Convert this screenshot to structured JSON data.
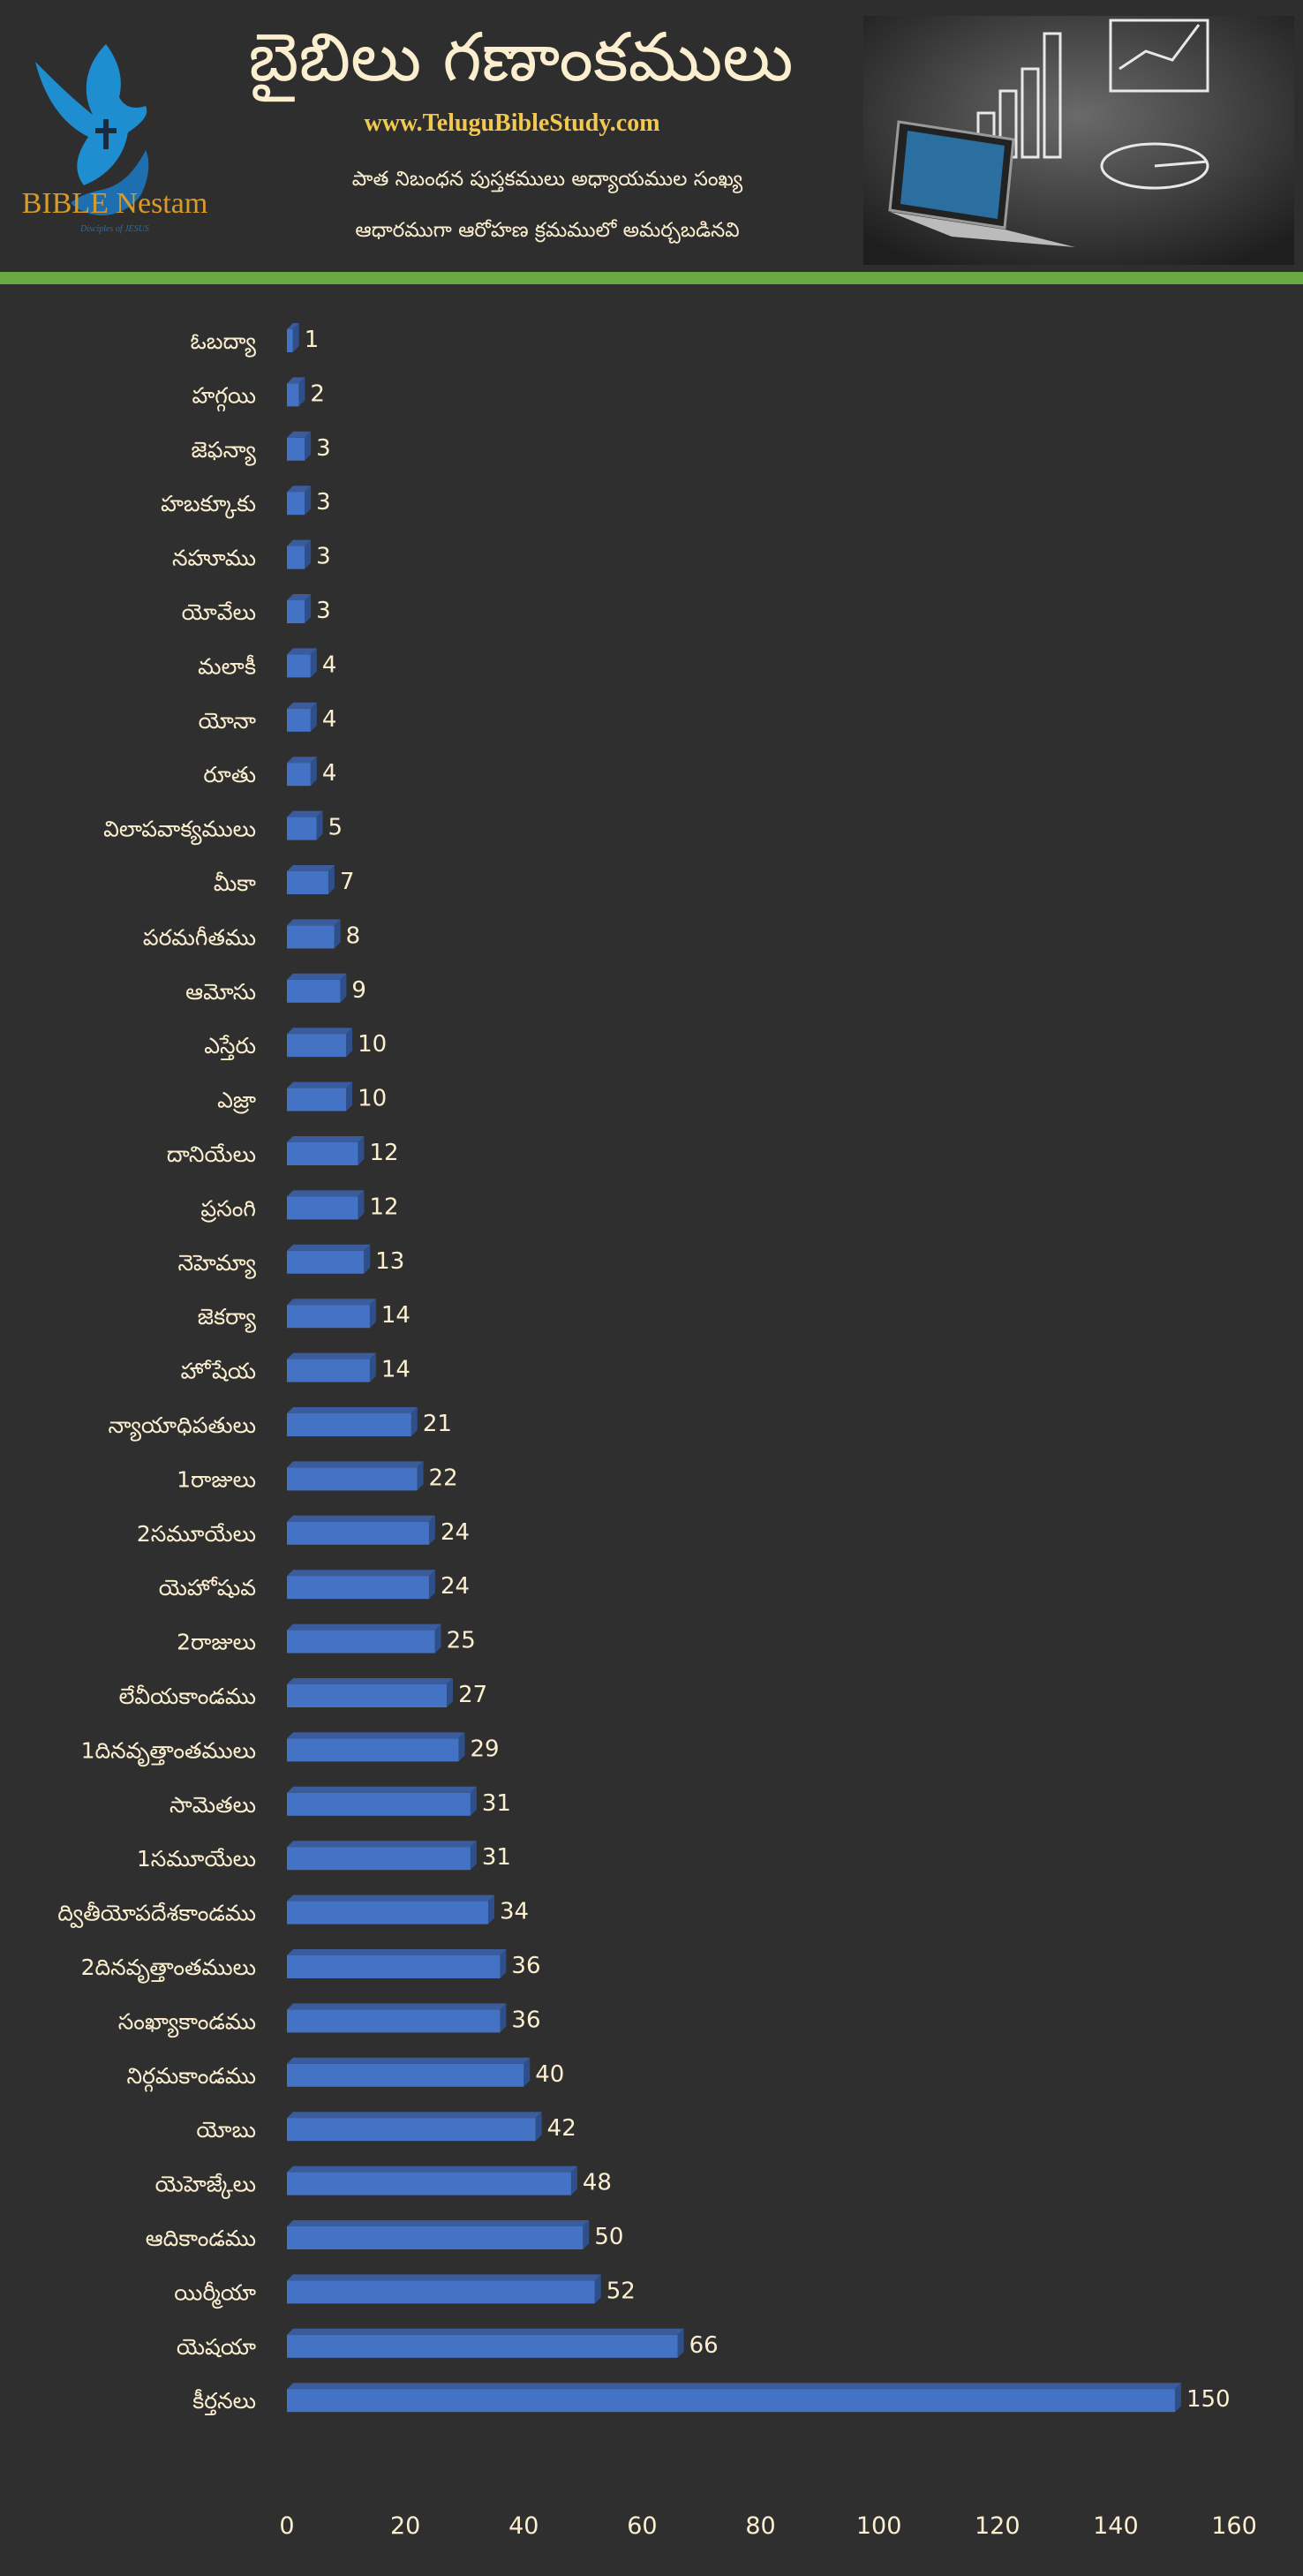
{
  "header": {
    "title": "బైబిలు గణాంకములు",
    "website": "www.TeluguBibleStudy.com",
    "subtitle_line1": "పాత నిబంధన పుస్తకములు అధ్యాయముల సంఖ్య",
    "subtitle_line2": "ఆధారముగా ఆరోహణ క్రమములో అమర్చబడినవి",
    "logo_text": "BIBLE Nestam",
    "logo_tagline": "Disciples of JESUS"
  },
  "colors": {
    "bar": "#4472c4",
    "bar_top": "#3a5c9c",
    "bar_side": "#2f4f8a",
    "accent_stripe": "#6aa842",
    "text": "#fbefcf",
    "background": "#2f2f2f"
  },
  "chart_data": {
    "type": "bar",
    "orientation": "horizontal",
    "style": "3d",
    "categories": [
      "ఓబద్యా",
      "హగ్గయి",
      "జెఫన్యా",
      "హబక్కూకు",
      "నహూము",
      "యోవేలు",
      "మలాకీ",
      "యోనా",
      "రూతు",
      "విలాపవాక్యములు",
      "మీకా",
      "పరమగీతము",
      "ఆమోసు",
      "ఎస్తేరు",
      "ఎజ్రా",
      "దానియేలు",
      "ప్రసంగి",
      "నెహెమ్యా",
      "జెకర్యా",
      "హోషేయ",
      "న్యాయాధిపతులు",
      "1రాజులు",
      "2సమూయేలు",
      "యెహోషువ",
      "2రాజులు",
      "లేవీయకాండము",
      "1దినవృత్తాంతములు",
      "సామెతలు",
      "1సమూయేలు",
      "ద్వితీయోపదేశకాండము",
      "2దినవృత్తాంతములు",
      "సంఖ్యాకాండము",
      "నిర్గమకాండము",
      "యోబు",
      "యెహెజ్కేలు",
      "ఆదికాండము",
      "యిర్మీయా",
      "యెషయా",
      "కీర్తనలు"
    ],
    "values": [
      1,
      2,
      3,
      3,
      3,
      3,
      4,
      4,
      4,
      5,
      7,
      8,
      9,
      10,
      10,
      12,
      12,
      13,
      14,
      14,
      21,
      22,
      24,
      24,
      25,
      27,
      29,
      31,
      31,
      34,
      36,
      36,
      40,
      42,
      48,
      50,
      52,
      66,
      150
    ],
    "xlim": [
      0,
      160
    ],
    "xticks": [
      "0",
      "20",
      "40",
      "60",
      "80",
      "100",
      "120",
      "140",
      "160"
    ],
    "data_labels": true,
    "grid": false,
    "legend": "none"
  }
}
